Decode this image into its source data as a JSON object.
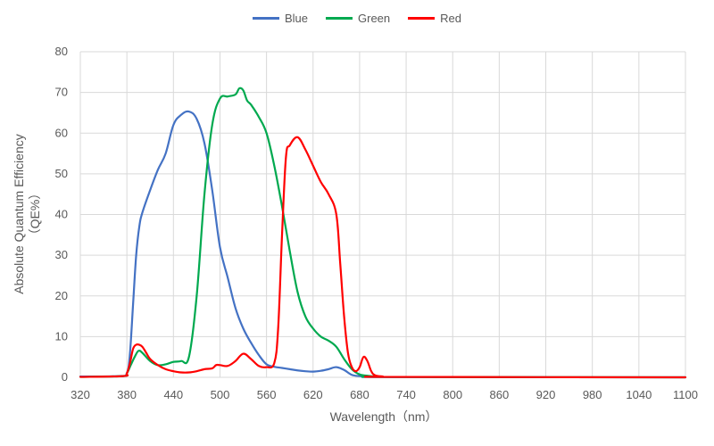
{
  "chart_data": {
    "type": "line",
    "title": "",
    "xlabel": "Wavelength（nm）",
    "ylabel_line1": "Absolute Quantum Efficiency",
    "ylabel_line2": "（QE%）",
    "xlim": [
      320,
      1100
    ],
    "ylim": [
      0,
      80
    ],
    "xticks": [
      320,
      380,
      440,
      500,
      560,
      620,
      680,
      740,
      800,
      860,
      920,
      980,
      1040,
      1100
    ],
    "yticks": [
      0,
      10,
      20,
      30,
      40,
      50,
      60,
      70,
      80
    ],
    "grid": true,
    "legend_position": "top-center",
    "series": [
      {
        "name": "Blue",
        "color": "#4472C4",
        "x": [
          320,
          370,
          380,
          384,
          388,
          392,
          396,
          400,
          410,
          420,
          430,
          440,
          450,
          460,
          470,
          480,
          490,
          500,
          510,
          520,
          530,
          540,
          550,
          560,
          570,
          580,
          590,
          600,
          610,
          620,
          630,
          640,
          650,
          660,
          670,
          680,
          690,
          700,
          720,
          1100
        ],
        "y": [
          0.2,
          0.3,
          1.0,
          6.0,
          18.0,
          30.0,
          37.0,
          40.5,
          46.0,
          51.0,
          55.0,
          62.0,
          64.5,
          65.3,
          63.5,
          57.5,
          46.0,
          32.0,
          24.5,
          17.0,
          12.0,
          8.5,
          5.5,
          3.2,
          2.6,
          2.3,
          2.0,
          1.7,
          1.5,
          1.4,
          1.6,
          2.0,
          2.5,
          1.8,
          0.6,
          0.3,
          0.2,
          0.1,
          0.05,
          0.0
        ]
      },
      {
        "name": "Green",
        "color": "#00A94F",
        "x": [
          320,
          375,
          380,
          385,
          390,
          395,
          400,
          410,
          420,
          430,
          440,
          450,
          460,
          470,
          480,
          490,
          500,
          510,
          520,
          525,
          530,
          535,
          540,
          550,
          560,
          570,
          580,
          590,
          600,
          610,
          620,
          630,
          640,
          650,
          660,
          670,
          680,
          690,
          700,
          720,
          1100
        ],
        "y": [
          0.1,
          0.3,
          1.0,
          3.0,
          5.0,
          6.5,
          6.0,
          4.0,
          3.0,
          3.2,
          3.8,
          4.0,
          5.0,
          20.0,
          45.0,
          62.0,
          68.5,
          69.0,
          69.5,
          71.0,
          70.5,
          68.0,
          67.0,
          64.0,
          60.0,
          52.0,
          42.0,
          31.0,
          21.0,
          15.0,
          12.0,
          10.0,
          9.0,
          7.5,
          4.5,
          2.0,
          0.7,
          0.4,
          0.2,
          0.1,
          0.0
        ]
      },
      {
        "name": "Red",
        "color": "#FF0000",
        "x": [
          320,
          375,
          380,
          384,
          388,
          392,
          396,
          400,
          405,
          410,
          420,
          430,
          440,
          450,
          460,
          470,
          480,
          490,
          495,
          500,
          510,
          520,
          530,
          540,
          550,
          560,
          570,
          575,
          580,
          585,
          590,
          600,
          610,
          620,
          630,
          640,
          650,
          655,
          660,
          665,
          670,
          675,
          680,
          685,
          690,
          695,
          700,
          710,
          720,
          1100
        ],
        "y": [
          0.1,
          0.3,
          1.0,
          3.5,
          7.0,
          8.0,
          8.0,
          7.5,
          6.0,
          4.5,
          3.0,
          2.0,
          1.5,
          1.2,
          1.2,
          1.5,
          2.0,
          2.2,
          3.0,
          3.0,
          2.8,
          4.0,
          5.8,
          4.5,
          2.8,
          2.5,
          3.5,
          12.0,
          35.0,
          54.0,
          57.0,
          59.0,
          56.0,
          52.0,
          48.0,
          45.0,
          40.0,
          28.0,
          15.0,
          6.0,
          2.5,
          1.5,
          2.5,
          5.0,
          4.0,
          1.5,
          0.5,
          0.2,
          0.1,
          0.0
        ]
      }
    ]
  }
}
